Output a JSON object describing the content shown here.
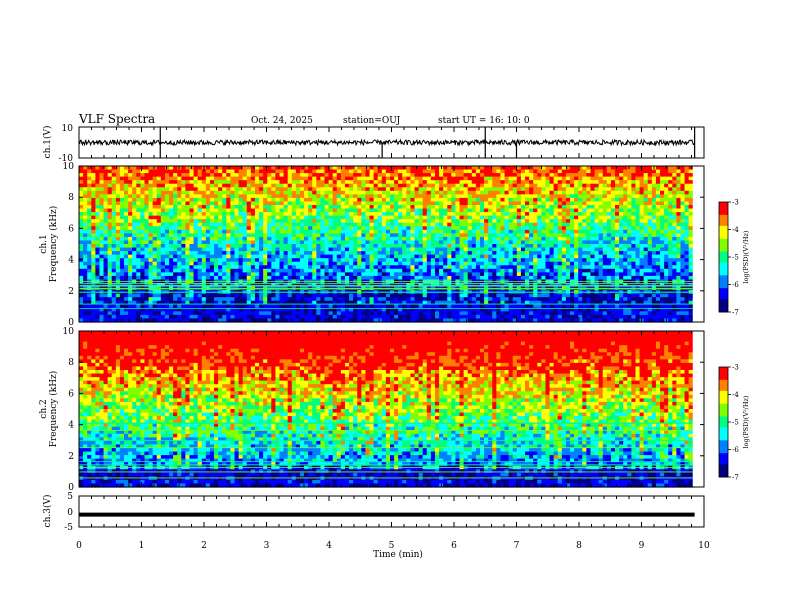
{
  "header": {
    "title": "VLF Spectra",
    "date": "Oct. 24, 2025",
    "station": "station=OUJ",
    "start": "start UT =  16: 10: 0"
  },
  "chart_data": [
    {
      "type": "line",
      "panel": "ch1-waveform",
      "ylabel": "ch.1(V)",
      "yticks": [
        "10",
        "-10"
      ],
      "ylim": [
        -10,
        10
      ],
      "xlim": [
        0,
        10
      ],
      "description_values": {
        "baseline": 0,
        "max_spike": 10,
        "min_spike": -10
      },
      "spikes_x": [
        1.3,
        4.85,
        6.5,
        7.0,
        9.85
      ]
    },
    {
      "type": "heatmap",
      "panel": "ch1-spectrogram",
      "ylabel": "ch.1\nFrequency (kHz)",
      "ylabel_line1": "ch.1",
      "ylabel_line2": "Frequency (kHz)",
      "yticks": [
        "0",
        "2",
        "4",
        "6",
        "8",
        "10"
      ],
      "ylim": [
        0,
        10
      ],
      "xlim": [
        0,
        9.82
      ],
      "zlim": [
        -7,
        -3
      ],
      "colorbar_ticks": [
        "-3",
        "-4",
        "-5",
        "-6",
        "-7"
      ],
      "colorbar_label": "log(PSD)(V²/Hz)"
    },
    {
      "type": "heatmap",
      "panel": "ch2-spectrogram",
      "ylabel_line1": "ch.2",
      "ylabel_line2": "Frequency (kHz)",
      "yticks": [
        "0",
        "2",
        "4",
        "6",
        "8",
        "10"
      ],
      "ylim": [
        0,
        10
      ],
      "xlim": [
        0,
        9.82
      ],
      "zlim": [
        -7,
        -3
      ],
      "colorbar_ticks": [
        "-3",
        "-4",
        "-5",
        "-6",
        "-7"
      ],
      "colorbar_label": "log(PSD)(V²/Hz)"
    },
    {
      "type": "line",
      "panel": "ch3-waveform",
      "ylabel": "ch.3(V)",
      "yticks": [
        "5",
        "0",
        "-5"
      ],
      "ylim": [
        -5,
        5
      ],
      "xlim": [
        0,
        10
      ],
      "level": -1
    }
  ],
  "xaxis": {
    "label": "Time (min)",
    "ticks": [
      "0",
      "1",
      "2",
      "3",
      "4",
      "5",
      "6",
      "7",
      "8",
      "9",
      "10"
    ]
  },
  "colors": {
    "colormap": [
      "#000080",
      "#0000ff",
      "#0080ff",
      "#00ffff",
      "#00ff80",
      "#80ff00",
      "#ffff00",
      "#ff8000",
      "#ff0000"
    ]
  }
}
